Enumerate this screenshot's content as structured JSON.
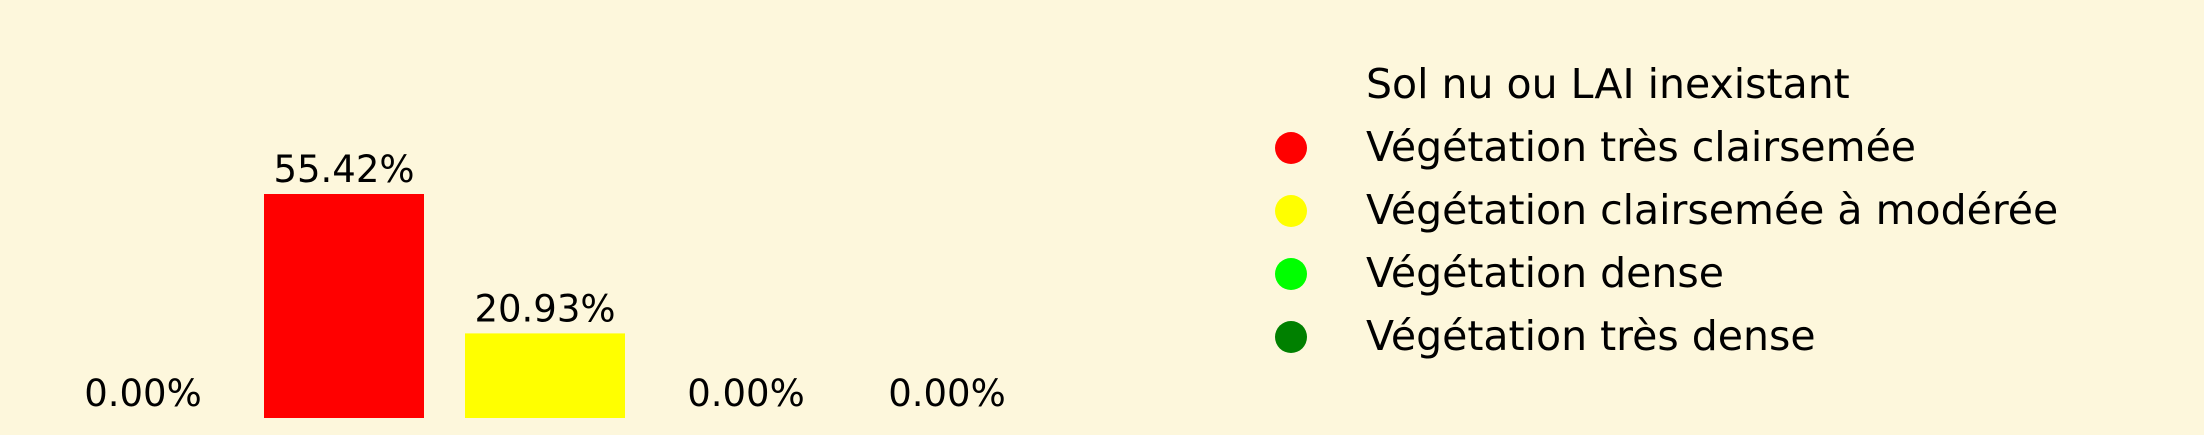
{
  "chart_data": {
    "type": "bar",
    "categories": [
      "Sol nu ou LAI inexistant",
      "Végétation très clairsemée",
      "Végétation clairsemée à modérée",
      "Végétation dense",
      "Végétation très dense"
    ],
    "values": [
      0,
      55.42,
      20.93,
      0,
      0
    ],
    "value_labels": [
      "0.00%",
      "55.42%",
      "20.93%",
      "0.00%",
      "0.00%"
    ],
    "colors": [
      "#fdf7dc",
      "#ff0000",
      "#ffff00",
      "#00ff00",
      "#008000"
    ],
    "ylim": [
      0,
      60
    ],
    "grid": false,
    "legend": {
      "placement": "right",
      "entries": [
        {
          "label": "Sol nu ou LAI inexistant",
          "color": "#fdf7dc"
        },
        {
          "label": "Végétation très clairsemée",
          "color": "#ff0000"
        },
        {
          "label": "Végétation clairsemée à modérée",
          "color": "#ffff00"
        },
        {
          "label": "Végétation dense",
          "color": "#00ff00"
        },
        {
          "label": "Végétation très dense",
          "color": "#008000"
        }
      ]
    }
  },
  "theme": {
    "background": "#fdf7dc",
    "text_color": "#000000"
  }
}
